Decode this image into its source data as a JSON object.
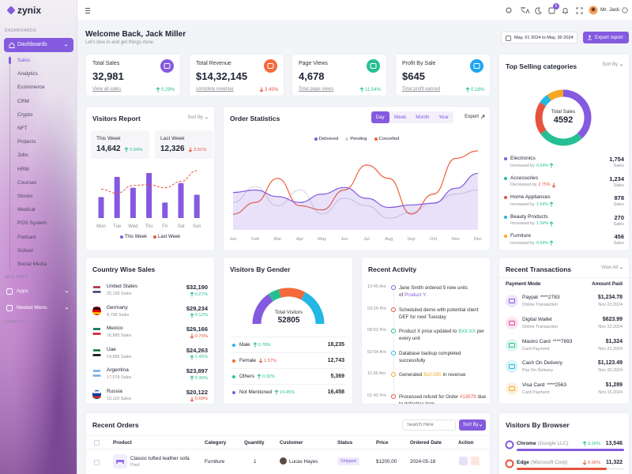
{
  "sidebar": {
    "brand": "zynix",
    "sections": [
      "DASHBOARDS",
      "WEB APPS",
      "CHARTS"
    ],
    "active": "Dashboards",
    "items": [
      "Sales",
      "Analytics",
      "Ecommerce",
      "CRM",
      "Crypto",
      "NFT",
      "Projects",
      "Jobs",
      "HRM",
      "Courses",
      "Stocks",
      "Medical",
      "POS System",
      "Podcast",
      "School",
      "Social Media"
    ],
    "groups": [
      "Apps",
      "Nested Menu"
    ]
  },
  "header": {
    "cart_badge": 5,
    "user": "Mr. Jack"
  },
  "welcome": {
    "title": "Welcome Back, Jack Miller",
    "subtitle": "Let's dive in and get things done.",
    "date_range": "May, 01 2024 to May, 30 2024",
    "export": "Export report"
  },
  "stats": [
    {
      "label": "Total Sales",
      "value": "32,981",
      "link": "View all sales",
      "change": "0.29%",
      "trend": "up",
      "color": "#845adf"
    },
    {
      "label": "Total Revenue",
      "value": "$14,32,145",
      "link": "complete revenue",
      "change": "3.45%",
      "trend": "down",
      "color": "#f5693b"
    },
    {
      "label": "Page Views",
      "value": "4,678",
      "link": "Total page views",
      "change": "11.54%",
      "trend": "up",
      "color": "#26bf94"
    },
    {
      "label": "Profit By Sale",
      "value": "$645",
      "link": "Total profit earned",
      "change": "0.18%",
      "trend": "up",
      "color": "#1ea7f0"
    }
  ],
  "visitors_report": {
    "title": "Visitors Report",
    "sort": "Sort By",
    "summary": [
      {
        "label": "This Week",
        "value": "14,642",
        "change": "0.64%",
        "trend": "up"
      },
      {
        "label": "Last Week",
        "value": "12,326",
        "change": "3.51%",
        "trend": "down"
      }
    ],
    "chart_data": {
      "type": "bar",
      "categories": [
        "Mon",
        "Tue",
        "Wed",
        "Thu",
        "Fri",
        "Sat",
        "Sun"
      ],
      "series": [
        {
          "name": "This Week",
          "color": "#845adf",
          "values": [
            27,
            53,
            39,
            58,
            20,
            45,
            30
          ]
        },
        {
          "name": "Last Week",
          "color": "#e6533c",
          "type": "line",
          "dashed": true,
          "values": [
            37,
            32,
            42,
            43,
            39,
            47,
            61
          ]
        }
      ]
    }
  },
  "order_statistics": {
    "title": "Order Statistics",
    "tabs": [
      "Day",
      "Week",
      "Month",
      "Year"
    ],
    "active_tab": 0,
    "export": "Export",
    "chart_data": {
      "type": "area",
      "categories": [
        "Jan",
        "Feb",
        "Mar",
        "Apr",
        "May",
        "Jun",
        "Jul",
        "Aug",
        "Sep",
        "Oct",
        "Nov",
        "Dec"
      ],
      "series": [
        {
          "name": "Delivered",
          "color": "#845adf",
          "fill": true,
          "values": [
            45,
            48,
            40,
            33,
            43,
            51,
            38,
            27,
            30,
            32,
            50,
            68
          ]
        },
        {
          "name": "Pending",
          "color": "#d2d3dc",
          "values": [
            33,
            52,
            29,
            48,
            19,
            38,
            29,
            14,
            21,
            33,
            43,
            48
          ]
        },
        {
          "name": "Concelled",
          "color": "#f0613c",
          "values": [
            19,
            33,
            62,
            29,
            24,
            48,
            78,
            62,
            19,
            43,
            86,
            95
          ]
        }
      ]
    }
  },
  "top_selling": {
    "title": "Top Selling categories",
    "sort": "Sort By",
    "center_label": "Total Sales",
    "center_value": 4592,
    "chart_data": {
      "type": "donut",
      "categories": [
        "Electronics",
        "Accessories",
        "Home Appliances",
        "Beauty Products",
        "Furniture"
      ],
      "values": [
        1754,
        1234,
        878,
        270,
        456
      ],
      "value_labels": [
        "1,754",
        "1,234",
        "878",
        "270",
        "456"
      ],
      "colors": [
        "#845adf",
        "#26bf94",
        "#e6533c",
        "#23b7e5",
        "#f5a623"
      ]
    },
    "rows": [
      {
        "note": "Increased by",
        "change": "0.64%",
        "trend": "up",
        "unit": "Sales"
      },
      {
        "note": "Decreased by",
        "change": "2.75%",
        "trend": "down",
        "unit": "Sales"
      },
      {
        "note": "Increased by",
        "change": "1.54%",
        "trend": "up",
        "unit": "Sales"
      },
      {
        "note": "Increased by",
        "change": "1.54%",
        "trend": "up",
        "unit": "Sales"
      },
      {
        "note": "Increased by",
        "change": "0.64%",
        "trend": "up",
        "unit": "Sales"
      }
    ]
  },
  "country_sales": {
    "title": "Country Wise Sales",
    "rows": [
      {
        "country": "United States",
        "sales": "32,190 Sales",
        "amount": "$32,190",
        "change": "0.27%",
        "trend": "up"
      },
      {
        "country": "Germany",
        "sales": "8,798 Sales",
        "amount": "$29,234",
        "change": "0.12%",
        "trend": "up"
      },
      {
        "country": "Mexico",
        "sales": "16,885 Sales",
        "amount": "$26,166",
        "change": "0.75%",
        "trend": "down"
      },
      {
        "country": "Uae",
        "sales": "14,885 Sales",
        "amount": "$24,263",
        "change": "1.45%",
        "trend": "up"
      },
      {
        "country": "Argentina",
        "sales": "17,578 Sales",
        "amount": "$23,897",
        "change": "0.36%",
        "trend": "up"
      },
      {
        "country": "Russia",
        "sales": "10,118 Sales",
        "amount": "$20,122",
        "change": "0.68%",
        "trend": "down"
      }
    ]
  },
  "gender": {
    "title": "Visitors By Gender",
    "center_label": "Total Visitors",
    "center_value": 52805,
    "chart_data": {
      "type": "half-donut",
      "categories": [
        "Male",
        "Female",
        "Others",
        "Not Mentioned"
      ],
      "values": [
        18235,
        12743,
        5369,
        16458
      ],
      "value_labels": [
        "18,235",
        "12,743",
        "5,369",
        "16,458"
      ],
      "colors": [
        "#23b7e5",
        "#f5693b",
        "#26bf94",
        "#845adf"
      ],
      "changes": [
        "0.78%",
        "1.57%",
        "0.32%",
        "19.45%"
      ],
      "trends": [
        "up",
        "down",
        "up",
        "up"
      ]
    }
  },
  "activity": {
    "title": "Recent Activity",
    "items": [
      {
        "time": "12:45 Am",
        "text": "Jane Smith ordered 5 new units of",
        "highlight": "Product Y.",
        "highlight_color": "#845adf",
        "color": "#845adf"
      },
      {
        "time": "03:26 Pm",
        "text": "Scheduled demo with potential client DEF for next Tuesday",
        "color": "#e6533c"
      },
      {
        "time": "08:52 Pm",
        "text": "Product X price updated to",
        "highlight": "$XX.XX",
        "highlight_color": "#26bf94",
        "after": "per every unit",
        "color": "#26bf94"
      },
      {
        "time": "02:54 Am",
        "text": "Database backup completed successfully",
        "color": "#23b7e5"
      },
      {
        "time": "11:36 Am",
        "text": "Generated",
        "highlight": "$10,000",
        "highlight_color": "#f5a623",
        "after": "in revenue",
        "color": "#f5a623"
      },
      {
        "time": "01:42 Pm",
        "text": "Processed refund for Order",
        "highlight": "#13579",
        "highlight_color": "#e6533c",
        "after": "due to defective item",
        "color": "#e6533c"
      }
    ]
  },
  "transactions": {
    "title": "Recent Transactions",
    "view_all": "View All",
    "columns": [
      "Payment Mode",
      "Amount Paid"
    ],
    "rows": [
      {
        "name": "Paypal",
        "card": "****2783",
        "mode": "Online Transaction",
        "amount": "$1,234.78",
        "date": "Nov 22,2024",
        "color": "#845adf"
      },
      {
        "name": "Digital Wallet",
        "mode": "Online Transaction",
        "amount": "$623.99",
        "date": "Nov 22,2024",
        "color": "#e84393"
      },
      {
        "name": "Mastro Card",
        "card": "****7893",
        "mode": "Card Payment",
        "amount": "$1,324",
        "date": "Nov 21,2024",
        "color": "#26bf94"
      },
      {
        "name": "Cash On Delivery",
        "mode": "Pay On Delivery",
        "amount": "$1,123.49",
        "date": "Nov 20,2024",
        "color": "#23b7e5"
      },
      {
        "name": "Visa Card",
        "card": "****2563",
        "mode": "Card Payment",
        "amount": "$1,289",
        "date": "Nov 16,2024",
        "color": "#f5a623"
      }
    ]
  },
  "orders": {
    "title": "Recent Orders",
    "search_placeholder": "Search Here",
    "sort": "Sort By",
    "columns": [
      "Product",
      "Category",
      "Quantity",
      "Customer",
      "Status",
      "Price",
      "Ordered Date",
      "Action"
    ],
    "rows": [
      {
        "product": "Classic tufted leather sofa",
        "brand": "Pixel",
        "category": "Furniture",
        "quantity": 1,
        "customer": "Lucas Hayes",
        "status": "Shipped",
        "price": "$1200.00",
        "date": "2024-05-18"
      }
    ]
  },
  "browsers": {
    "title": "Visitors By Browser",
    "rows": [
      {
        "name": "Chrome",
        "company": "(Google LLC)",
        "change": "3.26%",
        "trend": "up",
        "value": 13546,
        "value_label": "13,546",
        "color": "#845adf"
      },
      {
        "name": "Edge",
        "company": "(Microsoft Corp)",
        "change": "0.96%",
        "trend": "down",
        "value": 11322,
        "value_label": "11,322",
        "color": "#e6533c"
      }
    ]
  }
}
